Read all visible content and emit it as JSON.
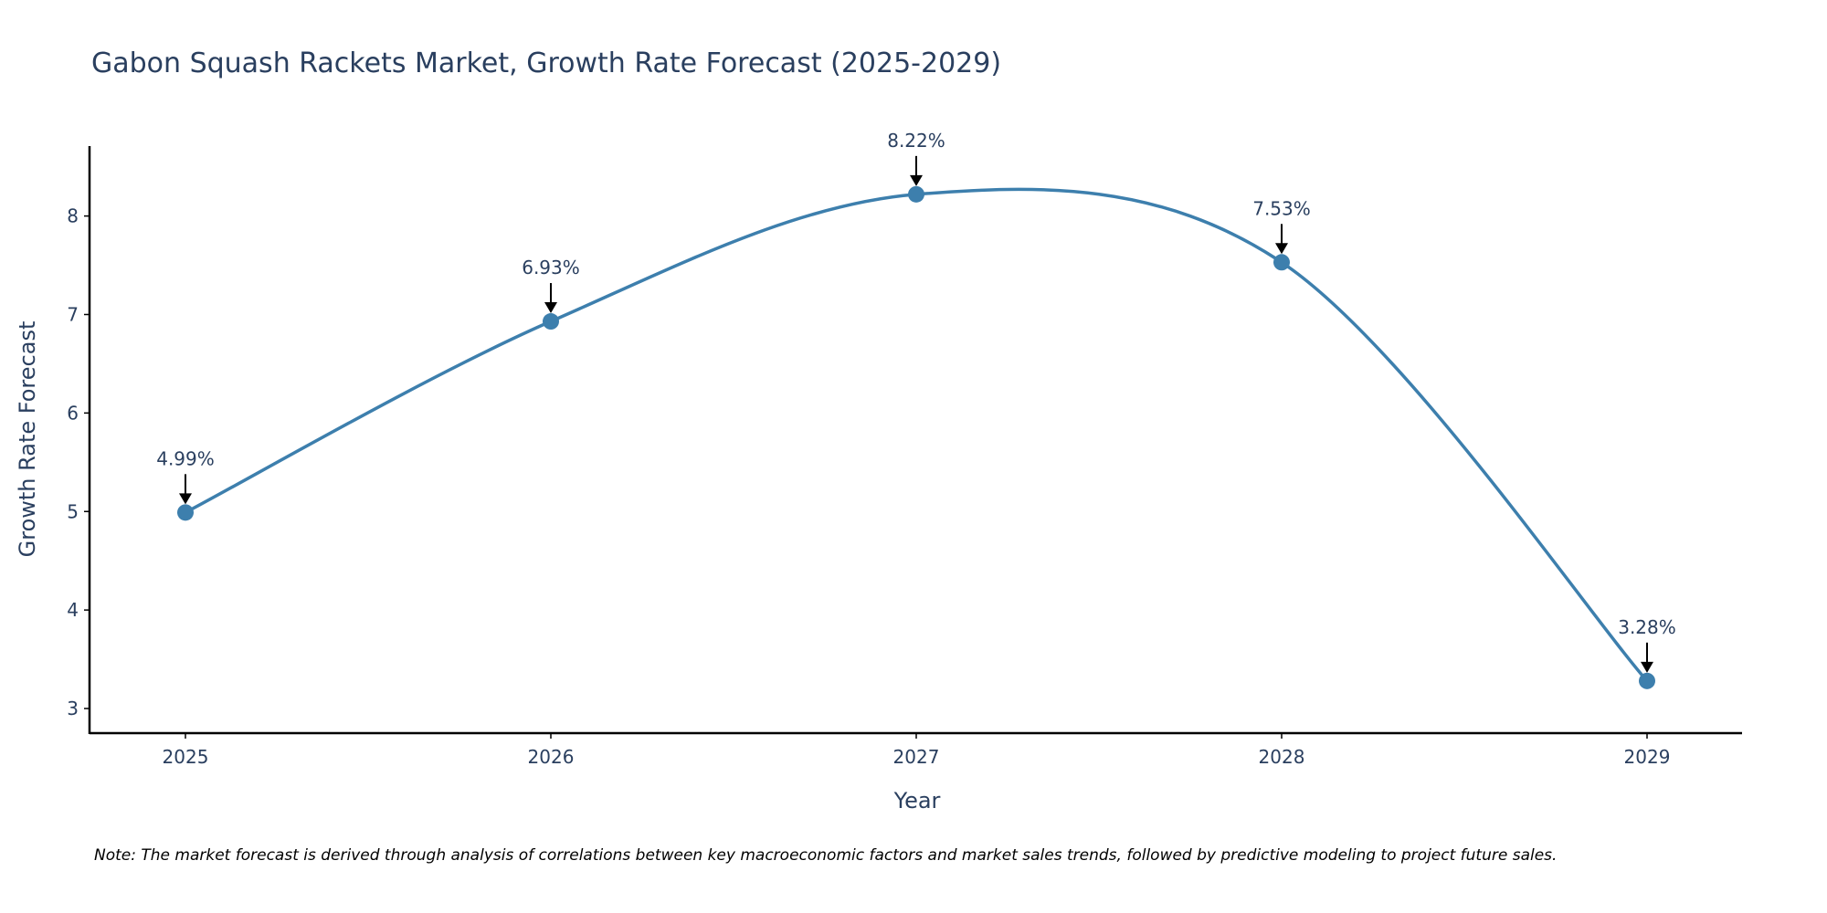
{
  "chart_data": {
    "type": "line",
    "title": "Gabon Squash Rackets Market, Growth Rate Forecast (2025-2029)",
    "xlabel": "Year",
    "ylabel": "Growth Rate Forecast",
    "categories": [
      "2025",
      "2026",
      "2027",
      "2028",
      "2029"
    ],
    "series": [
      {
        "name": "Growth Rate Forecast",
        "values": [
          4.99,
          6.93,
          8.22,
          7.53,
          3.28
        ],
        "labels": [
          "4.99%",
          "6.93%",
          "8.22%",
          "7.53%",
          "3.28%"
        ]
      }
    ],
    "y_ticks": [
      "3",
      "4",
      "5",
      "6",
      "7",
      "8"
    ],
    "ylim": [
      2.75,
      8.71
    ],
    "grid": false,
    "line_color": "#3d7fad",
    "marker_color": "#3d7fad",
    "note": "Note: The market forecast is derived through analysis of correlations between key macroeconomic factors and market sales trends, followed by predictive modeling to project future sales."
  }
}
